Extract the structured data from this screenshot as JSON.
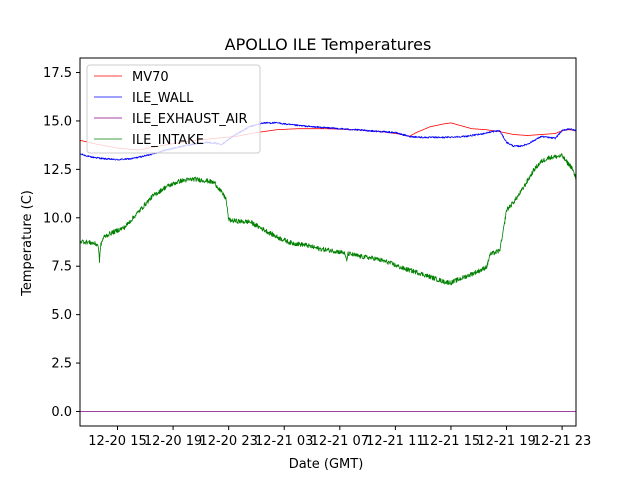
{
  "chart_data": {
    "type": "line",
    "title": "APOLLO ILE Temperatures",
    "xlabel": "Date (GMT)",
    "ylabel": "Temperature (C)",
    "xlim": [
      12.3,
      48.0
    ],
    "ylim": [
      -0.75,
      18.25
    ],
    "x_unit": "hours since 2019-12-20 00:00 GMT",
    "x_ticks": [
      {
        "value": 15,
        "label": "12-20 15"
      },
      {
        "value": 19,
        "label": "12-20 19"
      },
      {
        "value": 23,
        "label": "12-20 23"
      },
      {
        "value": 27,
        "label": "12-21 03"
      },
      {
        "value": 31,
        "label": "12-21 07"
      },
      {
        "value": 35,
        "label": "12-21 11"
      },
      {
        "value": 39,
        "label": "12-21 15"
      },
      {
        "value": 43,
        "label": "12-21 19"
      },
      {
        "value": 47,
        "label": "12-21 23"
      }
    ],
    "y_ticks": [
      {
        "value": 0,
        "label": "0.0"
      },
      {
        "value": 2.5,
        "label": "2.5"
      },
      {
        "value": 5,
        "label": "5.0"
      },
      {
        "value": 7.5,
        "label": "7.5"
      },
      {
        "value": 10,
        "label": "10.0"
      },
      {
        "value": 12.5,
        "label": "12.5"
      },
      {
        "value": 15,
        "label": "15.0"
      },
      {
        "value": 17.5,
        "label": "17.5"
      }
    ],
    "legend_position": "top-left",
    "series": [
      {
        "name": "MV70",
        "color": "#ff0000",
        "noise": 0.0,
        "points": [
          [
            12.3,
            14.0
          ],
          [
            13.5,
            13.8
          ],
          [
            15.0,
            13.6
          ],
          [
            16.5,
            13.5
          ],
          [
            18.0,
            13.7
          ],
          [
            20.0,
            13.95
          ],
          [
            22.0,
            14.1
          ],
          [
            23.5,
            14.2
          ],
          [
            25.0,
            14.4
          ],
          [
            26.5,
            14.55
          ],
          [
            28.0,
            14.6
          ],
          [
            30.0,
            14.6
          ],
          [
            32.0,
            14.55
          ],
          [
            34.0,
            14.45
          ],
          [
            35.5,
            14.3
          ],
          [
            36.0,
            14.2
          ],
          [
            36.5,
            14.4
          ],
          [
            37.5,
            14.7
          ],
          [
            38.5,
            14.85
          ],
          [
            39.0,
            14.9
          ],
          [
            39.5,
            14.8
          ],
          [
            40.5,
            14.6
          ],
          [
            41.5,
            14.55
          ],
          [
            42.5,
            14.45
          ],
          [
            43.5,
            14.3
          ],
          [
            44.5,
            14.25
          ],
          [
            45.5,
            14.3
          ],
          [
            46.5,
            14.35
          ],
          [
            47.0,
            14.5
          ],
          [
            47.5,
            14.55
          ],
          [
            48.0,
            14.5
          ]
        ]
      },
      {
        "name": "ILE_WALL",
        "color": "#0000ff",
        "noise": 0.04,
        "points": [
          [
            12.3,
            13.3
          ],
          [
            13.0,
            13.15
          ],
          [
            14.0,
            13.05
          ],
          [
            15.0,
            13.0
          ],
          [
            16.0,
            13.05
          ],
          [
            17.0,
            13.2
          ],
          [
            18.5,
            13.5
          ],
          [
            20.0,
            13.75
          ],
          [
            21.5,
            13.9
          ],
          [
            22.5,
            13.8
          ],
          [
            23.5,
            14.3
          ],
          [
            24.5,
            14.7
          ],
          [
            25.5,
            14.9
          ],
          [
            26.5,
            14.9
          ],
          [
            27.5,
            14.8
          ],
          [
            29.0,
            14.7
          ],
          [
            31.0,
            14.6
          ],
          [
            33.0,
            14.5
          ],
          [
            35.0,
            14.4
          ],
          [
            36.0,
            14.2
          ],
          [
            37.0,
            14.15
          ],
          [
            38.5,
            14.15
          ],
          [
            40.0,
            14.2
          ],
          [
            41.0,
            14.3
          ],
          [
            42.0,
            14.45
          ],
          [
            42.5,
            14.5
          ],
          [
            43.0,
            13.9
          ],
          [
            43.5,
            13.7
          ],
          [
            44.0,
            13.7
          ],
          [
            44.5,
            13.8
          ],
          [
            45.0,
            14.0
          ],
          [
            45.5,
            14.2
          ],
          [
            46.0,
            14.15
          ],
          [
            46.5,
            14.1
          ],
          [
            47.0,
            14.5
          ],
          [
            47.5,
            14.6
          ],
          [
            48.0,
            14.5
          ]
        ]
      },
      {
        "name": "ILE_EXHAUST_AIR",
        "color": "#800080",
        "noise": 0.0,
        "points": [
          [
            12.3,
            0.0
          ],
          [
            48.0,
            0.0
          ]
        ]
      },
      {
        "name": "ILE_INTAKE",
        "color": "#008000",
        "noise": 0.12,
        "points": [
          [
            12.3,
            8.8
          ],
          [
            13.2,
            8.7
          ],
          [
            13.6,
            8.6
          ],
          [
            13.7,
            7.8
          ],
          [
            13.8,
            8.6
          ],
          [
            14.0,
            9.0
          ],
          [
            14.5,
            9.2
          ],
          [
            15.5,
            9.5
          ],
          [
            16.5,
            10.3
          ],
          [
            17.5,
            11.1
          ],
          [
            18.5,
            11.6
          ],
          [
            19.5,
            11.9
          ],
          [
            20.5,
            12.0
          ],
          [
            21.5,
            11.9
          ],
          [
            22.0,
            11.8
          ],
          [
            22.8,
            11.0
          ],
          [
            23.0,
            9.9
          ],
          [
            23.3,
            9.85
          ],
          [
            24.0,
            9.8
          ],
          [
            24.5,
            9.8
          ],
          [
            25.5,
            9.4
          ],
          [
            26.5,
            9.0
          ],
          [
            27.5,
            8.7
          ],
          [
            28.5,
            8.6
          ],
          [
            29.5,
            8.4
          ],
          [
            30.5,
            8.3
          ],
          [
            31.3,
            8.2
          ],
          [
            31.5,
            7.8
          ],
          [
            31.6,
            8.15
          ],
          [
            32.5,
            8.0
          ],
          [
            33.5,
            7.9
          ],
          [
            34.5,
            7.7
          ],
          [
            35.5,
            7.4
          ],
          [
            36.5,
            7.2
          ],
          [
            37.5,
            6.95
          ],
          [
            38.5,
            6.7
          ],
          [
            39.0,
            6.65
          ],
          [
            39.5,
            6.8
          ],
          [
            40.5,
            7.1
          ],
          [
            41.3,
            7.35
          ],
          [
            41.6,
            7.5
          ],
          [
            41.8,
            8.1
          ],
          [
            42.5,
            8.3
          ],
          [
            42.7,
            9.0
          ],
          [
            43.0,
            10.4
          ],
          [
            43.5,
            10.8
          ],
          [
            44.0,
            11.3
          ],
          [
            44.5,
            11.9
          ],
          [
            45.0,
            12.5
          ],
          [
            45.5,
            12.9
          ],
          [
            46.0,
            13.1
          ],
          [
            46.5,
            13.15
          ],
          [
            47.0,
            13.2
          ],
          [
            47.3,
            12.9
          ],
          [
            47.7,
            12.6
          ],
          [
            48.0,
            12.0
          ]
        ]
      }
    ]
  }
}
